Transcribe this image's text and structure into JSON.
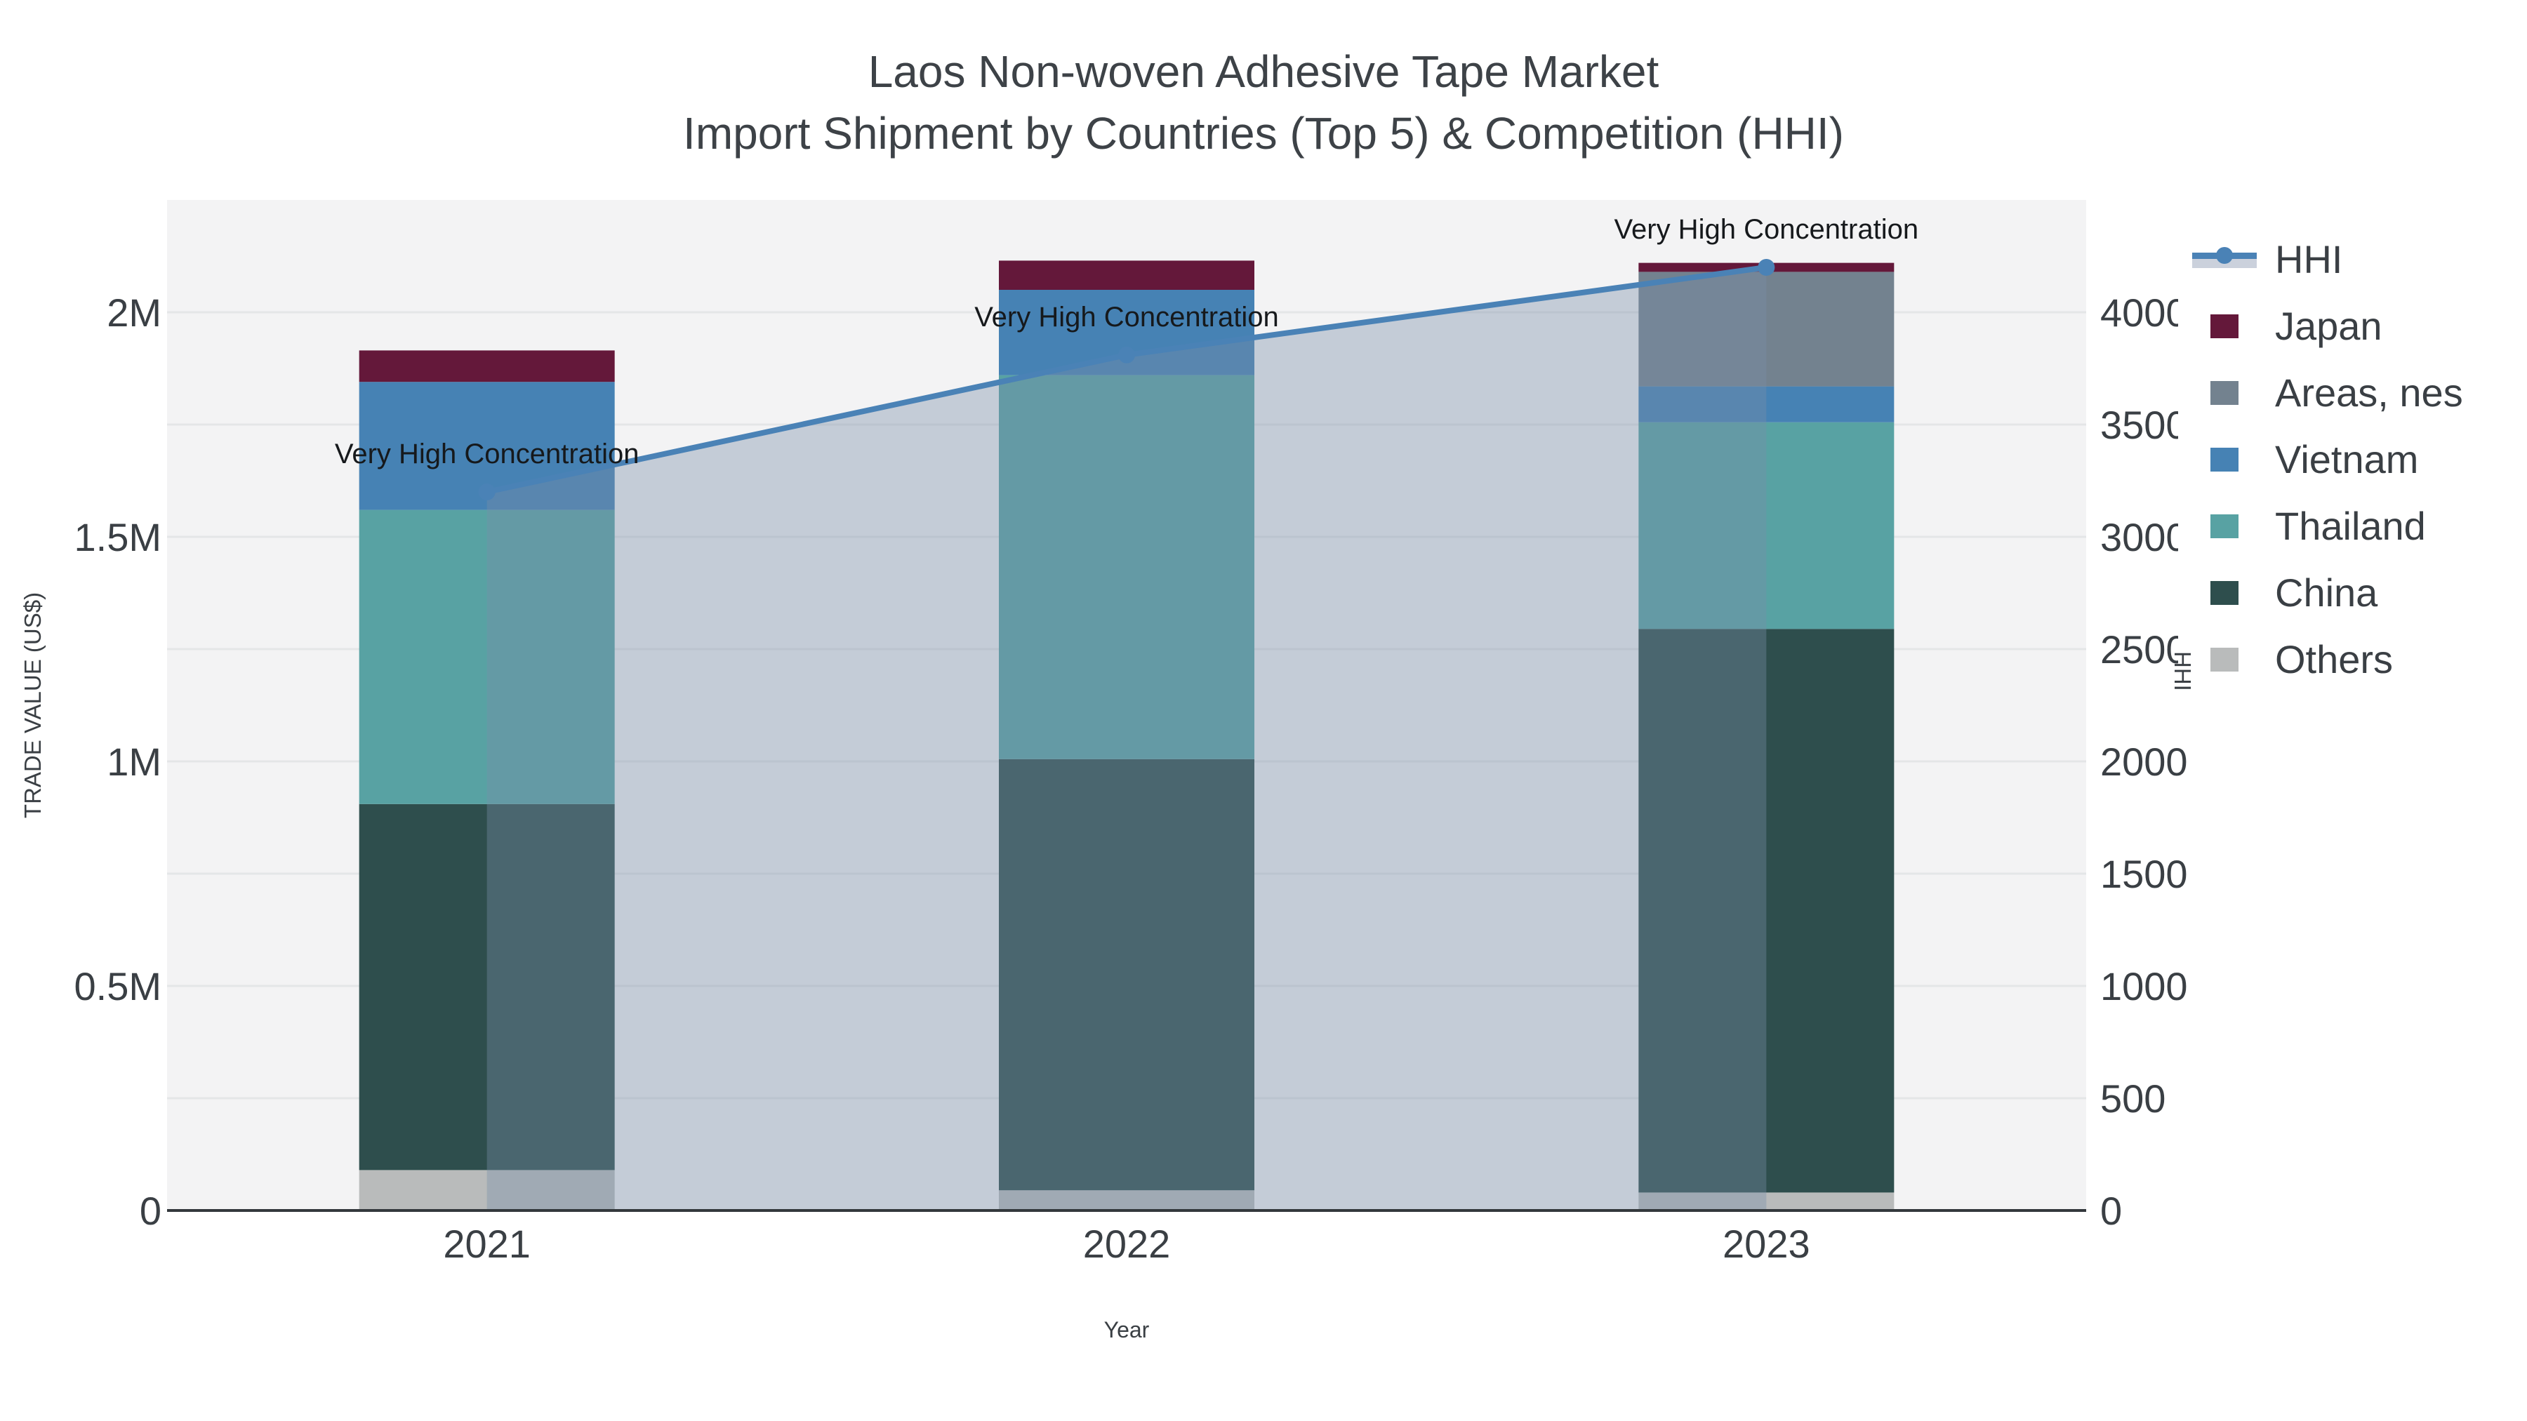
{
  "title": {
    "line1": "Laos Non-woven Adhesive Tape Market",
    "line2": "Import Shipment by Countries (Top 5) & Competition (HHI)"
  },
  "chart_data": {
    "type": "bar",
    "subtype": "stacked-bar-with-line-overlay",
    "categories": [
      "2021",
      "2022",
      "2023"
    ],
    "series": [
      {
        "name": "Others",
        "color": "#b9bbbb",
        "values": [
          90000,
          45000,
          40000
        ]
      },
      {
        "name": "China",
        "color": "#2e4e4d",
        "values": [
          815000,
          960000,
          1255000
        ]
      },
      {
        "name": "Thailand",
        "color": "#58a2a3",
        "values": [
          655000,
          855000,
          460000
        ]
      },
      {
        "name": "Vietnam",
        "color": "#4682b4",
        "values": [
          285000,
          190000,
          80000
        ]
      },
      {
        "name": "Areas, nes",
        "color": "#73828f",
        "values": [
          0,
          0,
          255000
        ]
      },
      {
        "name": "Japan",
        "color": "#64183a",
        "values": [
          70000,
          65000,
          20000
        ]
      }
    ],
    "line_series": {
      "name": "HHI",
      "values": [
        3200,
        3810,
        4200
      ],
      "line_color": "#4a82b6",
      "marker_color": "#4a82b6",
      "fill_color": "rgba(121,141,169,0.38)",
      "legend_band_color": "#cbd1dc"
    },
    "annotations": [
      "Very High Concentration",
      "Very High Concentration",
      "Very High Concentration"
    ],
    "annotation_color": "#16191c",
    "xlabel": "Year",
    "ylabel_left": "TRADE VALUE (US$)",
    "ylabel_right": "HHI",
    "left_axis": {
      "max": 2250000,
      "tick_values": [
        0,
        500000,
        1000000,
        1500000,
        2000000
      ],
      "tick_labels": [
        "0",
        "0.5M",
        "1M",
        "1.5M",
        "2M"
      ],
      "grid_step": 250000
    },
    "right_axis": {
      "max": 4500,
      "tick_values": [
        0,
        500,
        1000,
        1500,
        2000,
        2500,
        3000,
        3500,
        4000
      ],
      "tick_labels": [
        "0",
        "500",
        "1000",
        "1500",
        "2000",
        "2500",
        "3000",
        "3500",
        "4000"
      ]
    },
    "legend_order": [
      "HHI",
      "Japan",
      "Areas, nes",
      "Vietnam",
      "Thailand",
      "China",
      "Others"
    ],
    "legend_position": "right",
    "grid": true,
    "plot_bg_color": "#f3f3f4",
    "grid_color": "#e4e6e7",
    "axis_line_color": "#33383c",
    "text_color": "#3a3f44"
  }
}
